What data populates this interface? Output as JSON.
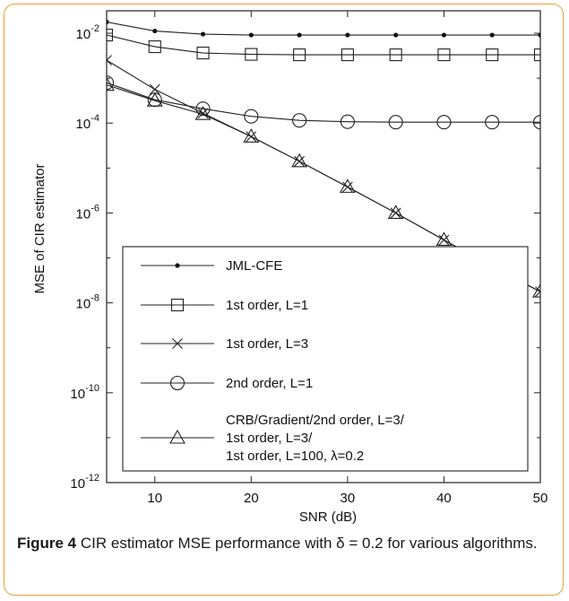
{
  "caption": {
    "label": "Figure 4",
    "text": "CIR estimator MSE performance with δ = 0.2 for various algorithms."
  },
  "chart_data": {
    "type": "line",
    "title": "",
    "xlabel": "SNR (dB)",
    "ylabel": "MSE of CIR estimator",
    "xlim": [
      5,
      50
    ],
    "ylim_log10": [
      -12,
      -1.5
    ],
    "yscale": "log",
    "grid": false,
    "legend_position": "bottom-left",
    "x_ticks": [
      "10",
      "20",
      "30",
      "40",
      "50"
    ],
    "y_ticks": [
      {
        "base": "10",
        "exp": "-2"
      },
      {
        "base": "10",
        "exp": "-4"
      },
      {
        "base": "10",
        "exp": "-6"
      },
      {
        "base": "10",
        "exp": "-8"
      },
      {
        "base": "10",
        "exp": "-10"
      },
      {
        "base": "10",
        "exp": "-12"
      }
    ],
    "x": [
      5,
      10,
      15,
      20,
      25,
      30,
      35,
      40,
      45,
      50
    ],
    "series": [
      {
        "name": "JML-CFE",
        "marker": "dot",
        "log10_values": [
          -1.75,
          -1.95,
          -2.02,
          -2.04,
          -2.04,
          -2.04,
          -2.04,
          -2.04,
          -2.04,
          -2.04
        ]
      },
      {
        "name": "1st order, L=1",
        "marker": "square",
        "log10_values": [
          -2.04,
          -2.3,
          -2.44,
          -2.47,
          -2.48,
          -2.48,
          -2.48,
          -2.48,
          -2.48,
          -2.48
        ]
      },
      {
        "name": "1st order, L=3",
        "marker": "x",
        "log10_values": [
          -2.6,
          -3.25,
          -3.78,
          -4.3,
          -4.85,
          -5.42,
          -6.0,
          -6.6,
          -7.2,
          -7.75
        ]
      },
      {
        "name": "2nd order, L=1",
        "marker": "circle",
        "log10_values": [
          -3.1,
          -3.48,
          -3.68,
          -3.85,
          -3.94,
          -3.97,
          -3.98,
          -3.98,
          -3.98,
          -3.98
        ]
      },
      {
        "name": "CRB/Gradient/2nd order, L=3/\n1st order, L=3/\n1st order, L=100, λ=0.2",
        "marker": "triangle",
        "log10_values": [
          -3.15,
          -3.5,
          -3.8,
          -4.3,
          -4.85,
          -5.42,
          -6.0,
          -6.6,
          -7.2,
          -7.75
        ]
      }
    ]
  }
}
